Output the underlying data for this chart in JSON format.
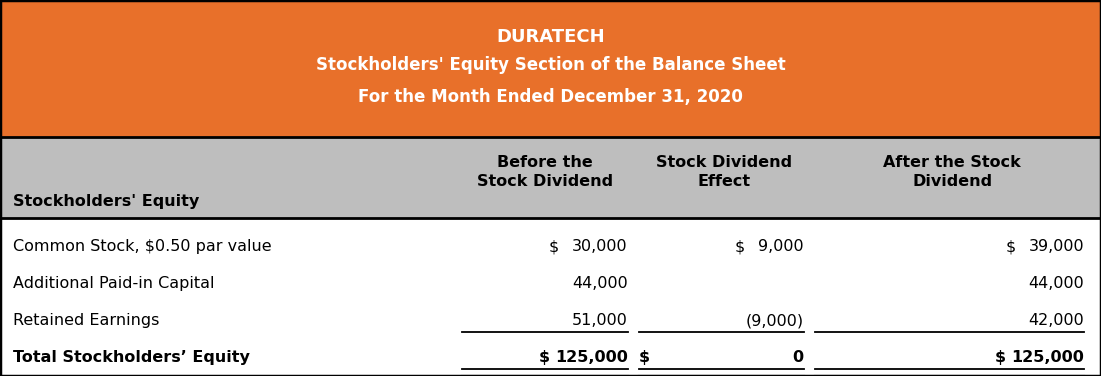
{
  "title_company": "DURATECH",
  "title_line2": "Stockholders' Equity Section of the Balance Sheet",
  "title_line3": "For the Month Ended December 31, 2020",
  "header_col0": "Stockholders' Equity",
  "header_col1": "Before the\nStock Dividend",
  "header_col2": "Stock Dividend\nEffect",
  "header_col3": "After the Stock\nDividend",
  "rows": [
    {
      "label": "Common Stock, $0.50 par value",
      "c1_dollar": "$",
      "c1_val": "30,000",
      "c2_dollar": "$",
      "c2_val": "9,000",
      "c3_dollar": "$",
      "c3_val": "39,000",
      "ul1": false,
      "ul2": false,
      "ul3": false,
      "double_ul": false,
      "bold": false
    },
    {
      "label": "Additional Paid-in Capital",
      "c1_dollar": "",
      "c1_val": "44,000",
      "c2_dollar": "",
      "c2_val": "",
      "c3_dollar": "",
      "c3_val": "44,000",
      "ul1": false,
      "ul2": false,
      "ul3": false,
      "double_ul": false,
      "bold": false
    },
    {
      "label": "Retained Earnings",
      "c1_dollar": "",
      "c1_val": "51,000",
      "c2_dollar": "",
      "c2_val": "(9,000)",
      "c3_dollar": "",
      "c3_val": "42,000",
      "ul1": true,
      "ul2": true,
      "ul3": true,
      "double_ul": false,
      "bold": false
    },
    {
      "label": "Total Stockholders’ Equity",
      "c1_dollar": "$",
      "c1_val": "125,000",
      "c2_dollar": "$",
      "c2_val": "0",
      "c3_dollar": "$",
      "c3_val": "125,000",
      "ul1": true,
      "ul2": true,
      "ul3": true,
      "double_ul": true,
      "bold": true
    }
  ],
  "header_bg": "#E8702A",
  "subheader_bg": "#BEBEBE",
  "body_bg": "#FFFFFF",
  "title_color": "#FFFFFF",
  "body_text_color": "#000000",
  "figsize": [
    11.01,
    3.76
  ],
  "dpi": 100
}
